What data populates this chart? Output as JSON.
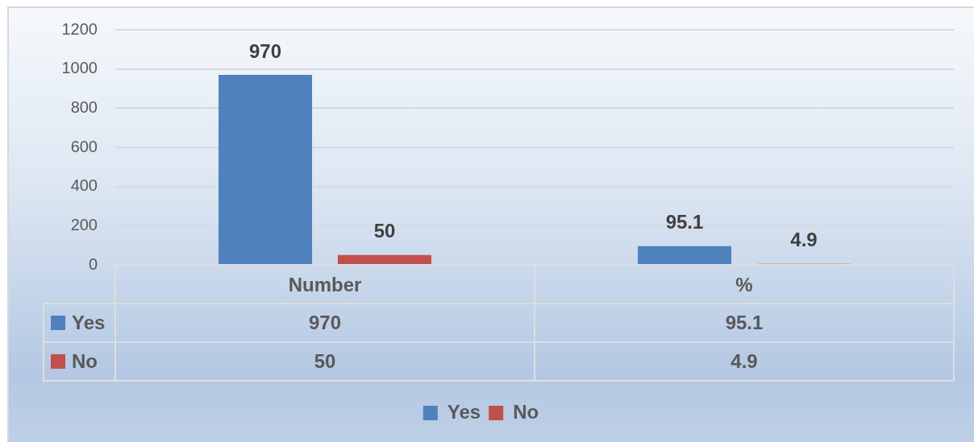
{
  "chart_data": [
    {
      "type": "bar",
      "categories": [
        "Number",
        "%"
      ],
      "series": [
        {
          "name": "Yes",
          "color": "#4f81bd",
          "values": [
            970,
            95.1
          ],
          "value_labels": [
            "970",
            "95.1"
          ]
        },
        {
          "name": "No",
          "color": "#c0504d",
          "values": [
            50,
            4.9
          ],
          "value_labels": [
            "50",
            "4.9"
          ]
        }
      ],
      "ylim": [
        0,
        1200
      ],
      "yticks": [
        0,
        200,
        400,
        600,
        800,
        1000,
        1200
      ],
      "grid": "y",
      "legend": "bottom"
    },
    {
      "type": "other",
      "annotations": [
        "970",
        "95.1",
        "50",
        "4.9"
      ]
    }
  ]
}
